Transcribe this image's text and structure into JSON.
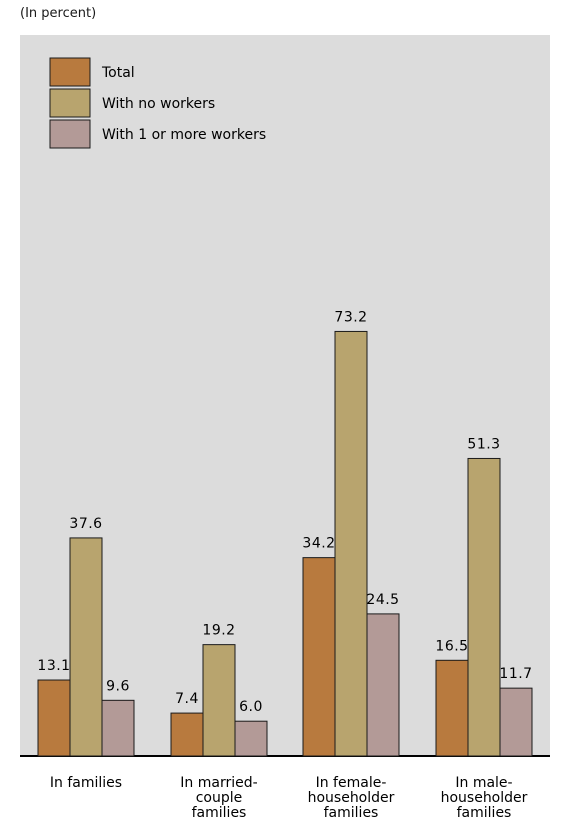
{
  "unit_note": "(In percent)",
  "colors": {
    "background": "#dcdcdc",
    "total": "#b87a3e",
    "no_workers": "#b8a46e",
    "with_workers": "#b39a97"
  },
  "chart_data": {
    "type": "bar",
    "ylim": [
      0,
      100
    ],
    "grid": false,
    "legend_placement": "top-left",
    "categories": [
      [
        "In families"
      ],
      [
        "In married-",
        "couple",
        "families"
      ],
      [
        "In female-",
        "householder",
        "families"
      ],
      [
        "In male-",
        "householder",
        "families"
      ]
    ],
    "series": [
      {
        "name": "Total",
        "key": "total",
        "values": [
          13.1,
          7.4,
          34.2,
          16.5
        ],
        "labels": [
          "13.1",
          "7.4",
          "34.2",
          "16.5"
        ]
      },
      {
        "name": "With no workers",
        "key": "no_workers",
        "values": [
          37.6,
          19.2,
          73.2,
          51.3
        ],
        "labels": [
          "37.6",
          "19.2",
          "73.2",
          "51.3"
        ]
      },
      {
        "name": "With 1 or more workers",
        "key": "with_workers",
        "values": [
          9.6,
          6.0,
          24.5,
          11.7
        ],
        "labels": [
          "9.6",
          "6.0",
          "24.5",
          "11.7"
        ]
      }
    ]
  }
}
